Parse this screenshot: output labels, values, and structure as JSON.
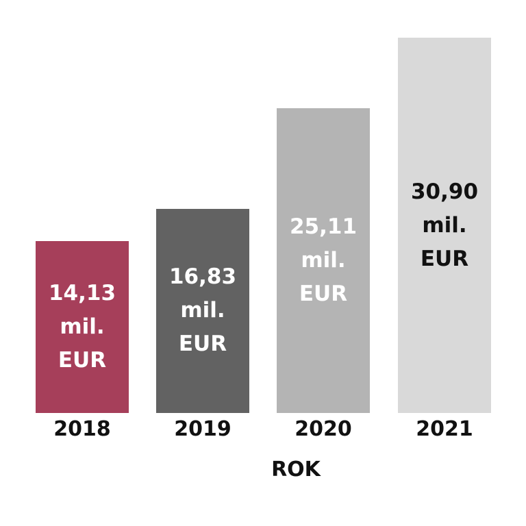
{
  "chart_data": {
    "type": "bar",
    "x_label": "ROK",
    "categories": [
      "2018",
      "2019",
      "2020",
      "2021"
    ],
    "values": [
      14.13,
      16.83,
      25.11,
      30.9
    ],
    "value_labels": [
      "14,13 mil. EUR",
      "16,83 mil. EUR",
      "25,11 mil. EUR",
      "30,90 mil. EUR"
    ],
    "colors": [
      "#a63f5a",
      "#626262",
      "#b4b4b4",
      "#d9d9d9"
    ],
    "label_colors": [
      "#ffffff",
      "#ffffff",
      "#ffffff",
      "#111111"
    ]
  }
}
